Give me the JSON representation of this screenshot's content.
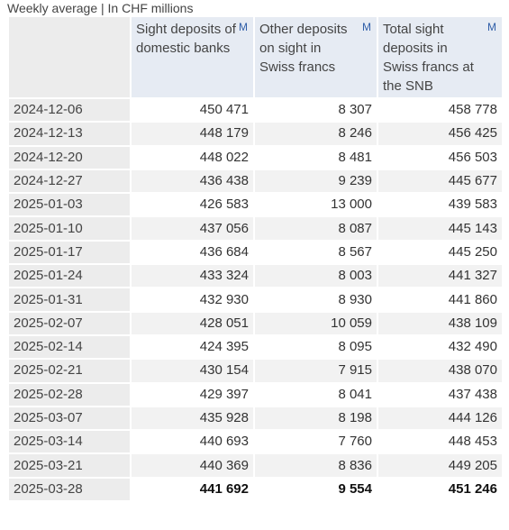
{
  "caption": "Weekly average | In CHF millions",
  "table": {
    "headers": [
      {
        "label": "Sight deposits of domestic banks",
        "marker": "M"
      },
      {
        "label": "Other deposits on sight in Swiss francs",
        "marker": "M"
      },
      {
        "label": "Total sight deposits in Swiss francs at the SNB",
        "marker": "M"
      }
    ],
    "rows": [
      [
        "2024-12-06",
        "450 471",
        "8 307",
        "458 778"
      ],
      [
        "2024-12-13",
        "448 179",
        "8 246",
        "456 425"
      ],
      [
        "2024-12-20",
        "448 022",
        "8 481",
        "456 503"
      ],
      [
        "2024-12-27",
        "436 438",
        "9 239",
        "445 677"
      ],
      [
        "2025-01-03",
        "426 583",
        "13 000",
        "439 583"
      ],
      [
        "2025-01-10",
        "437 056",
        "8 087",
        "445 143"
      ],
      [
        "2025-01-17",
        "436 684",
        "8 567",
        "445 250"
      ],
      [
        "2025-01-24",
        "433 324",
        "8 003",
        "441 327"
      ],
      [
        "2025-01-31",
        "432 930",
        "8 930",
        "441 860"
      ],
      [
        "2025-02-07",
        "428 051",
        "10 059",
        "438 109"
      ],
      [
        "2025-02-14",
        "424 395",
        "8 095",
        "432 490"
      ],
      [
        "2025-02-21",
        "430 154",
        "7 915",
        "438 070"
      ],
      [
        "2025-02-28",
        "429 397",
        "8 041",
        "437 438"
      ],
      [
        "2025-03-07",
        "435 928",
        "8 198",
        "444 126"
      ],
      [
        "2025-03-14",
        "440 693",
        "7 760",
        "448 453"
      ],
      [
        "2025-03-21",
        "440 369",
        "8 836",
        "449 205"
      ],
      [
        "2025-03-28",
        "441 692",
        "9 554",
        "451 246"
      ]
    ]
  }
}
